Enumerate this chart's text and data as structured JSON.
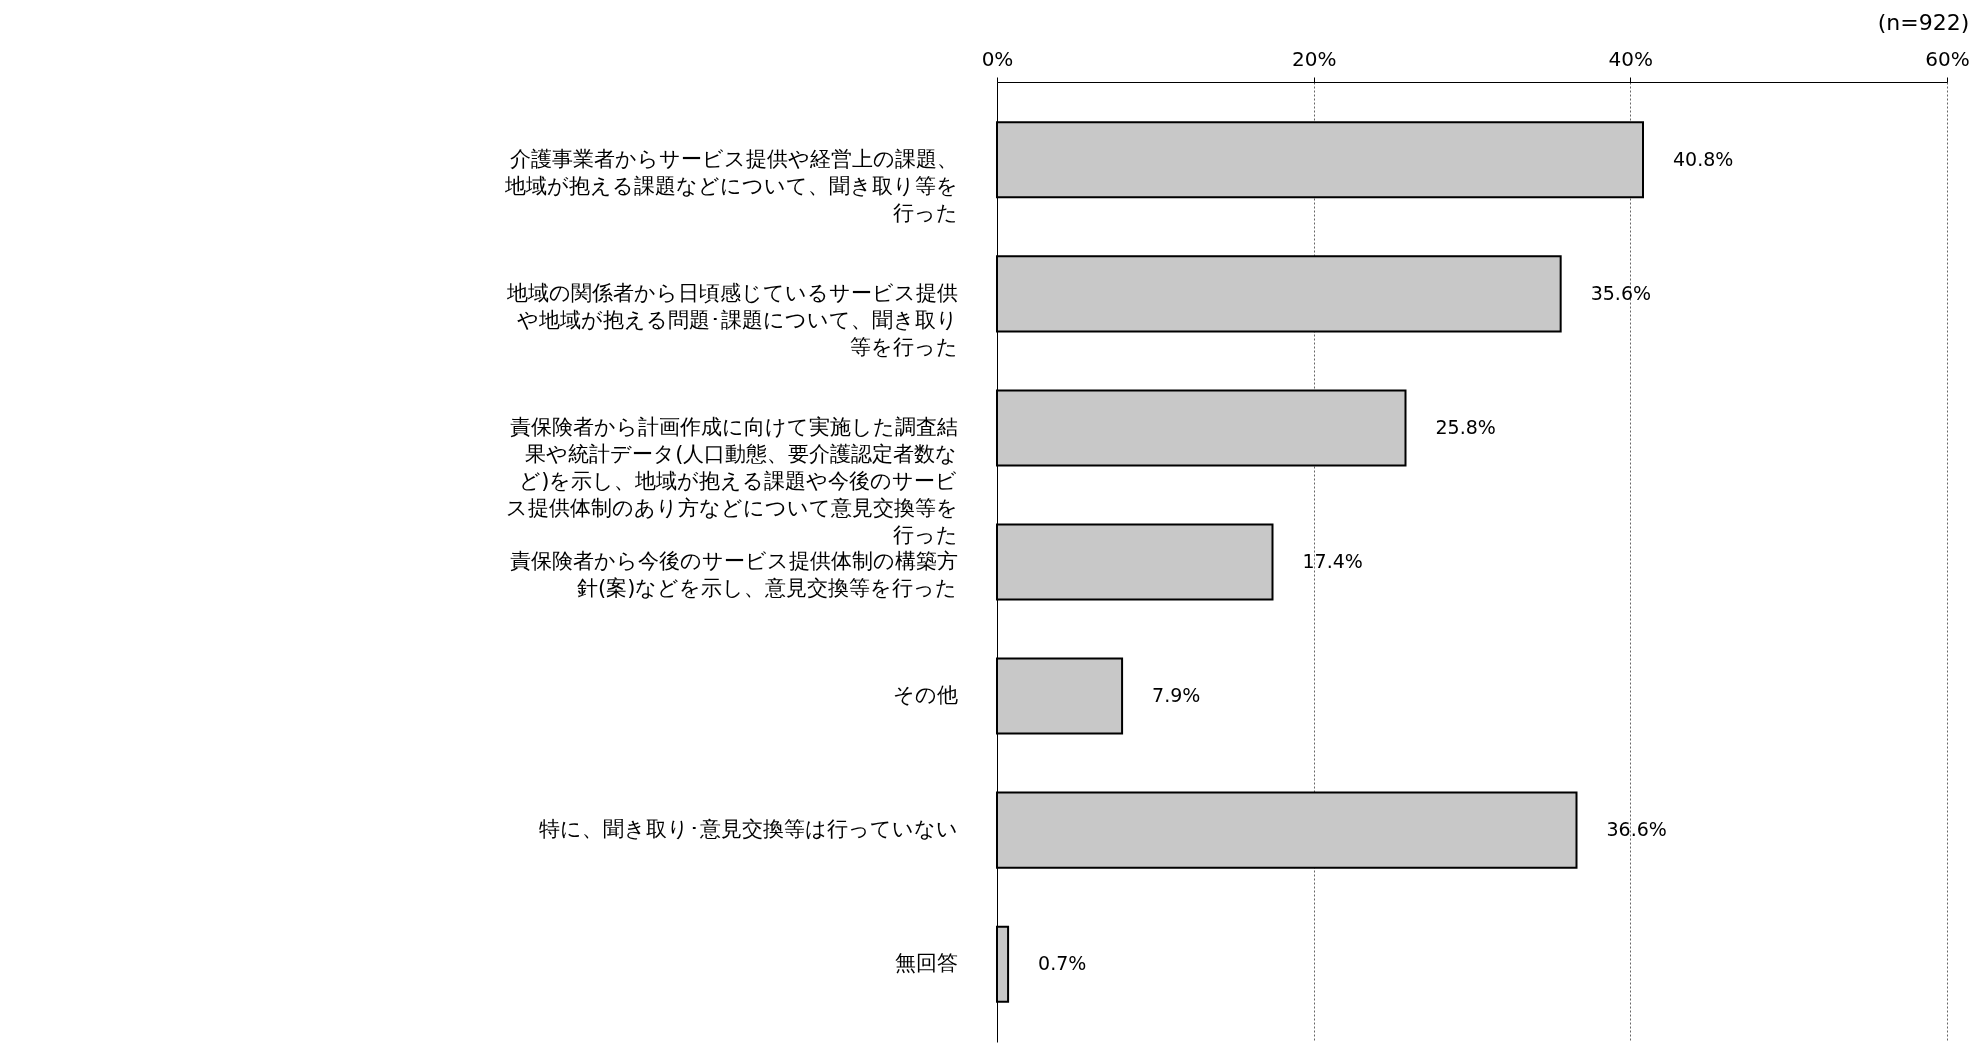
{
  "chart_data": {
    "type": "bar",
    "orientation": "horizontal",
    "categories": [
      "介護事業者からサービス提供や経営上の課題、地域が抱える課題などについて、聞き取り等を行った",
      "地域の関係者から日頃感じているサービス提供や地域が抱える問題･課題について、聞き取り等を行った",
      "責保険者から計画作成に向けて実施した調査結果や統計データ(人口動態、要介護認定者数など)を示し、地域が抱える課題や今後のサービス提供体制のあり方などについて意見交換等を行った",
      "責保険者から今後のサービス提供体制の構築方針(案)などを示し、意見交換等を行った",
      "その他",
      "特に、聞き取り･意見交換等は行っていない",
      "無回答"
    ],
    "values": [
      40.8,
      35.6,
      25.8,
      17.4,
      7.9,
      36.6,
      0.7
    ],
    "value_labels": [
      "40.8%",
      "35.6%",
      "25.8%",
      "17.4%",
      "7.9%",
      "36.6%",
      "0.7%"
    ],
    "color": "#c8c8c8",
    "xlim": [
      0,
      60
    ],
    "xticks": [
      {
        "value": 0,
        "label": "0%"
      },
      {
        "value": 20,
        "label": "20%"
      },
      {
        "value": 40,
        "label": "40%"
      },
      {
        "value": 60,
        "label": "60%"
      }
    ],
    "grid": "x",
    "annotations": [
      "(n=922)"
    ]
  }
}
